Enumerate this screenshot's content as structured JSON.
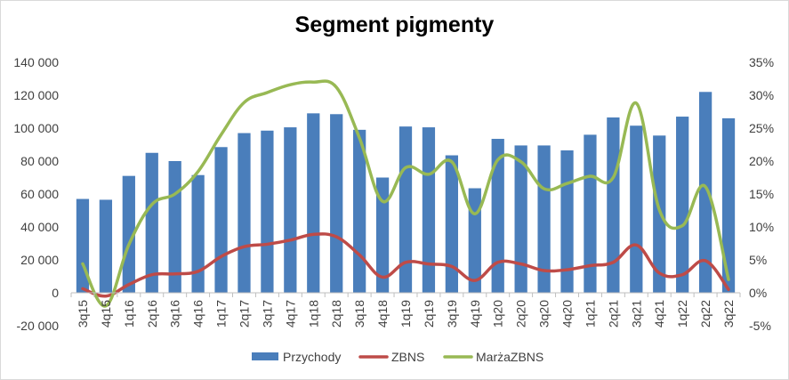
{
  "chart_data": {
    "type": "bar",
    "title": "Segment pigmenty",
    "categories": [
      "3q15",
      "4q15",
      "1q16",
      "2q16",
      "3q16",
      "4q16",
      "1q17",
      "2q17",
      "3q17",
      "4q17",
      "1q18",
      "2q18",
      "3q18",
      "4q18",
      "1q19",
      "2q19",
      "3q19",
      "4q19",
      "1q20",
      "2q20",
      "3q20",
      "4q20",
      "1q21",
      "2q21",
      "3q21",
      "4q21",
      "1q22",
      "2q22",
      "3q22"
    ],
    "y_left": {
      "ylim": [
        -20000,
        140000
      ],
      "ticks": [
        -20000,
        0,
        20000,
        40000,
        60000,
        80000,
        100000,
        120000,
        140000
      ],
      "tick_labels": [
        "-20 000",
        "0",
        "20 000",
        "40 000",
        "60 000",
        "80 000",
        "100 000",
        "120 000",
        "140 000"
      ]
    },
    "y_right": {
      "ylim": [
        -5,
        35
      ],
      "ticks": [
        -5,
        0,
        5,
        10,
        15,
        20,
        25,
        30,
        35
      ],
      "tick_labels": [
        "-5%",
        "0%",
        "5%",
        "10%",
        "15%",
        "20%",
        "25%",
        "30%",
        "35%"
      ]
    },
    "series": [
      {
        "name": "Przychody",
        "type": "bar",
        "axis": "left",
        "color": "#4a7ebb",
        "values": [
          57000,
          56500,
          71000,
          85000,
          80000,
          71500,
          88500,
          97000,
          98500,
          100500,
          109000,
          108500,
          99000,
          70000,
          101000,
          100500,
          83500,
          63500,
          93500,
          89500,
          89500,
          86500,
          96000,
          106500,
          101500,
          95500,
          107000,
          122000,
          106000
        ]
      },
      {
        "name": "ZBNS",
        "type": "line",
        "axis": "left",
        "color": "#be4b48",
        "values": [
          2500,
          -2000,
          5000,
          11000,
          11500,
          13000,
          22000,
          28000,
          29500,
          32000,
          35500,
          34000,
          23000,
          9500,
          18500,
          17500,
          16000,
          7500,
          18500,
          17500,
          13500,
          14000,
          16500,
          18500,
          29000,
          12000,
          11000,
          19500,
          2000
        ]
      },
      {
        "name": "MarżaZBNS",
        "type": "line",
        "axis": "right",
        "color": "#98b954",
        "values": [
          4.4,
          -2,
          7.3,
          13.4,
          15,
          18.4,
          24,
          28.9,
          30.4,
          31.6,
          32,
          31.2,
          23.5,
          13.9,
          19,
          18,
          19.9,
          12,
          20.2,
          19.9,
          15.8,
          16.6,
          17.7,
          17.5,
          28.8,
          12.6,
          10.2,
          16.1,
          2
        ]
      }
    ],
    "legend_position": "bottom",
    "grid": false
  }
}
